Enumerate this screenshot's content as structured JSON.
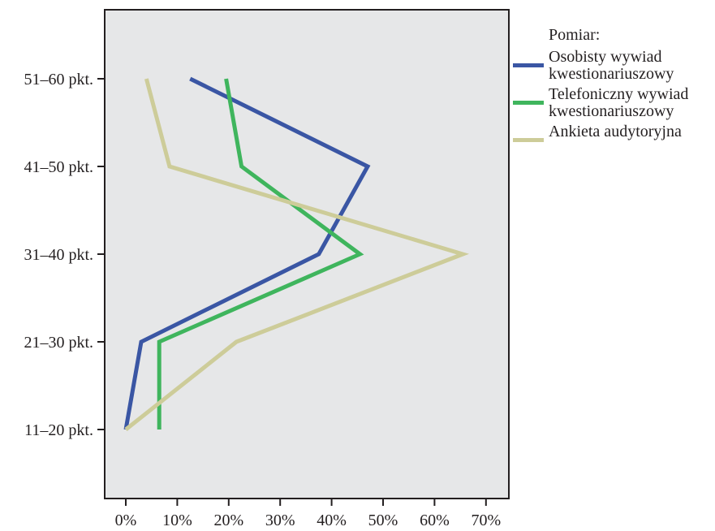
{
  "chart_data": {
    "type": "line",
    "orientation": "horizontal",
    "title": "",
    "xlabel": "",
    "ylabel": "",
    "categories": [
      "11–20 pkt.",
      "21–30 pkt.",
      "31–40 pkt.",
      "41–50 pkt.",
      "51–60 pkt."
    ],
    "x_ticks": [
      "0%",
      "10%",
      "20%",
      "30%",
      "40%",
      "50%",
      "60%",
      "70%"
    ],
    "xlim": [
      0,
      70
    ],
    "grid": false,
    "legend": {
      "title": "Pomiar:",
      "position": "right"
    },
    "series": [
      {
        "name": "Osobisty wywiad kwestionariuszowy",
        "name_lines": [
          "Osobisty wywiad",
          "kwestionariuszowy"
        ],
        "color": "#3a56a4",
        "values": [
          0,
          3,
          37.5,
          47,
          12.5
        ]
      },
      {
        "name": "Telefoniczny wywiad kwestionariuszowy",
        "name_lines": [
          "Telefoniczny wywiad",
          "kwestionariuszowy"
        ],
        "color": "#3fb55d",
        "values": [
          6.5,
          6.5,
          45.5,
          22.5,
          19.5
        ]
      },
      {
        "name": "Ankieta audytoryjna",
        "name_lines": [
          "Ankieta audytoryjna"
        ],
        "color": "#cdcc99",
        "values": [
          0,
          21.5,
          65.5,
          8.5,
          4
        ]
      }
    ],
    "colors": {
      "plot_background": "#e6e7e8",
      "axis": "#231f20"
    }
  }
}
